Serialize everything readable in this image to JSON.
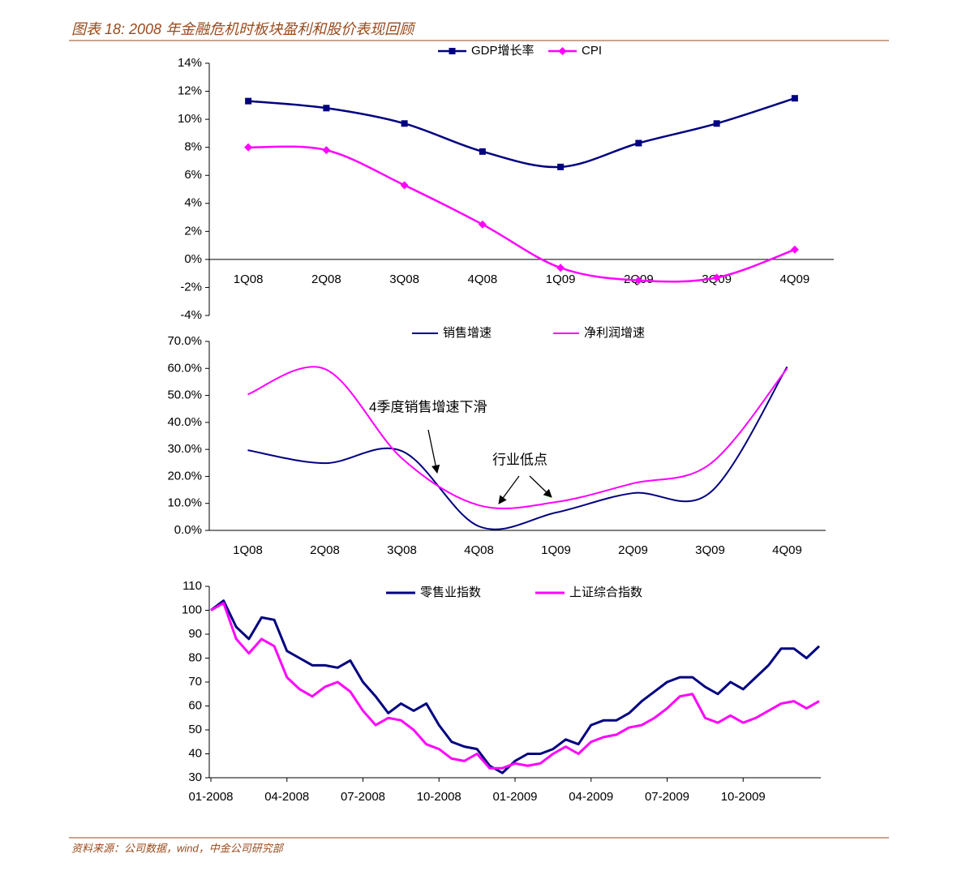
{
  "title": "图表 18: 2008 年金融危机时板块盈利和股价表现回顾",
  "source": "资料来源：公司数据，wind，中金公司研究部",
  "chart_data": [
    {
      "type": "line",
      "categories": [
        "1Q08",
        "2Q08",
        "3Q08",
        "4Q08",
        "1Q09",
        "2Q09",
        "3Q09",
        "4Q09"
      ],
      "series": [
        {
          "name": "GDP增长率",
          "color": "#000080",
          "marker": "square",
          "values": [
            11.3,
            10.8,
            9.7,
            7.7,
            6.6,
            8.3,
            9.7,
            11.5
          ]
        },
        {
          "name": "CPI",
          "color": "#ff00ff",
          "marker": "diamond",
          "values": [
            8.0,
            7.8,
            5.3,
            2.5,
            -0.6,
            -1.5,
            -1.3,
            0.7
          ]
        }
      ],
      "ylim": [
        -4,
        14
      ],
      "yticks": [
        {
          "value": -4,
          "label": "-4%"
        },
        {
          "value": -2,
          "label": "-2%"
        },
        {
          "value": 0,
          "label": "0%"
        },
        {
          "value": 2,
          "label": "2%"
        },
        {
          "value": 4,
          "label": "4%"
        },
        {
          "value": 6,
          "label": "6%"
        },
        {
          "value": 8,
          "label": "8%"
        },
        {
          "value": 10,
          "label": "10%"
        },
        {
          "value": 12,
          "label": "12%"
        },
        {
          "value": 14,
          "label": "14%"
        }
      ],
      "legend": "top"
    },
    {
      "type": "line",
      "categories": [
        "1Q08",
        "2Q08",
        "3Q08",
        "4Q08",
        "1Q09",
        "2Q09",
        "3Q09",
        "4Q09"
      ],
      "series": [
        {
          "name": "销售增速",
          "color": "#000080",
          "values": [
            29.7,
            24.9,
            29.4,
            1.5,
            6.6,
            13.8,
            14,
            60.6
          ]
        },
        {
          "name": "净利润增速",
          "color": "#ff00ff",
          "values": [
            50.4,
            59.8,
            26.7,
            9.3,
            10.5,
            17.4,
            24.6,
            60
          ]
        }
      ],
      "ylim": [
        0,
        70
      ],
      "yticks": [
        {
          "value": 0,
          "label": "0.0%"
        },
        {
          "value": 10,
          "label": "10.0%"
        },
        {
          "value": 20,
          "label": "20.0%"
        },
        {
          "value": 30,
          "label": "30.0%"
        },
        {
          "value": 40,
          "label": "40.0%"
        },
        {
          "value": 50,
          "label": "50.0%"
        },
        {
          "value": 60,
          "label": "60.0%"
        },
        {
          "value": 70,
          "label": "70.0%"
        }
      ],
      "annotations": [
        "4季度销售增速下滑",
        "行业低点"
      ],
      "legend": "top"
    },
    {
      "type": "line",
      "x": [
        0,
        0.5,
        1,
        1.5,
        2,
        2.5,
        3,
        3.5,
        4,
        4.5,
        5,
        5.5,
        6,
        6.5,
        7,
        7.5,
        8,
        8.5,
        9,
        9.5,
        10,
        10.5,
        11,
        11.5,
        12,
        12.5,
        13,
        13.5,
        14,
        14.5,
        15,
        15.5,
        16,
        16.5,
        17,
        17.5,
        18,
        18.5,
        19,
        19.5,
        20,
        20.5,
        21,
        21.5,
        22,
        22.5,
        23,
        23.5,
        24
      ],
      "series": [
        {
          "name": "零售业指数",
          "color": "#000080",
          "values": [
            100,
            104,
            93,
            88,
            97,
            96,
            83,
            80,
            77,
            77,
            76,
            79,
            70,
            64,
            57,
            61,
            58,
            61,
            52,
            45,
            43,
            42,
            35,
            32,
            37,
            40,
            40,
            42,
            46,
            44,
            52,
            54,
            54,
            57,
            62,
            66,
            70,
            72,
            72,
            68,
            65,
            70,
            67,
            72,
            77,
            84,
            84,
            80,
            85
          ]
        },
        {
          "name": "上证综合指数",
          "color": "#ff00ff",
          "values": [
            100,
            103,
            88,
            82,
            88,
            85,
            72,
            67,
            64,
            68,
            70,
            66,
            58,
            52,
            55,
            54,
            50,
            44,
            42,
            38,
            37,
            40,
            34,
            34,
            36,
            35,
            36,
            40,
            43,
            40,
            45,
            47,
            48,
            51,
            52,
            55,
            59,
            64,
            65,
            55,
            53,
            56,
            53,
            55,
            58,
            61,
            62,
            59,
            62
          ]
        }
      ],
      "xlim": [
        0,
        24
      ],
      "xticks": [
        {
          "value": 0,
          "label": "01-2008"
        },
        {
          "value": 3,
          "label": "04-2008"
        },
        {
          "value": 6,
          "label": "07-2008"
        },
        {
          "value": 9,
          "label": "10-2008"
        },
        {
          "value": 12,
          "label": "01-2009"
        },
        {
          "value": 15,
          "label": "04-2009"
        },
        {
          "value": 18,
          "label": "07-2009"
        },
        {
          "value": 21,
          "label": "10-2009"
        }
      ],
      "ylim": [
        30,
        110
      ],
      "yticks": [
        30,
        40,
        50,
        60,
        70,
        80,
        90,
        100,
        110
      ],
      "legend": "top"
    }
  ]
}
